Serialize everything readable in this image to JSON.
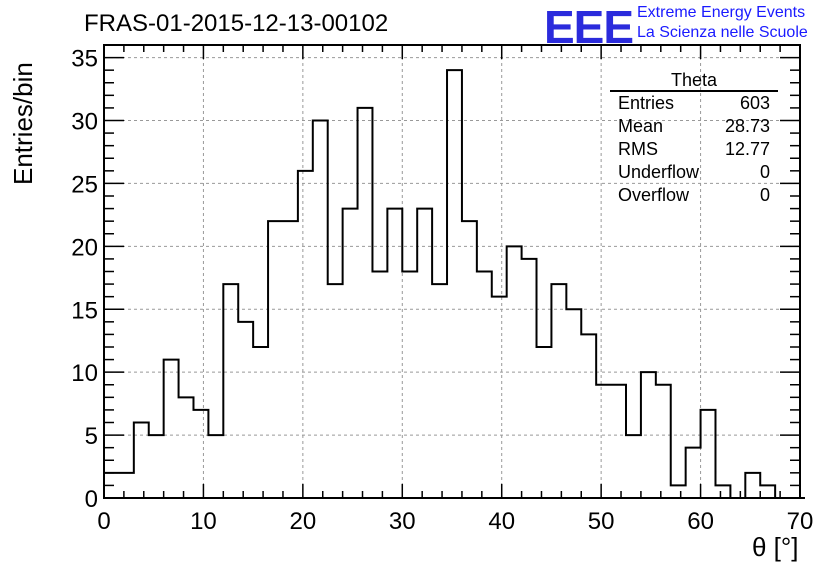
{
  "header": {
    "title": "FRAS-01-2015-12-13-00102",
    "logo": "EEE",
    "logo_line1": "Extreme Energy Events",
    "logo_line2": "La Scienza nelle Scuole"
  },
  "stats_box": {
    "name": "Theta",
    "rows": [
      {
        "label": "Entries",
        "value": "603"
      },
      {
        "label": "Mean",
        "value": "28.73"
      },
      {
        "label": "RMS",
        "value": "12.77"
      },
      {
        "label": "Underflow",
        "value": "0"
      },
      {
        "label": "Overflow",
        "value": "0"
      }
    ]
  },
  "chart_data": {
    "type": "bar",
    "histogram": true,
    "title": "FRAS-01-2015-12-13-00102",
    "xlabel": "θ [°]",
    "ylabel": "Entries/bin",
    "xlim": [
      0,
      70
    ],
    "ylim": [
      0,
      36
    ],
    "bin_width": 1.5,
    "bin_edges_start": 0,
    "values": [
      2,
      2,
      6,
      5,
      11,
      8,
      7,
      5,
      17,
      14,
      12,
      22,
      22,
      26,
      30,
      17,
      23,
      31,
      18,
      23,
      18,
      23,
      17,
      34,
      22,
      18,
      16,
      20,
      19,
      12,
      17,
      15,
      13,
      9,
      9,
      5,
      10,
      9,
      1,
      4,
      7,
      1,
      0,
      2,
      1,
      0,
      0
    ],
    "xticks": [
      "0",
      "10",
      "20",
      "30",
      "40",
      "50",
      "60",
      "70"
    ],
    "yticks": [
      "0",
      "5",
      "10",
      "15",
      "20",
      "25",
      "30",
      "35"
    ],
    "grid": true,
    "line_color": "#000000",
    "grid_color": "#999999"
  }
}
